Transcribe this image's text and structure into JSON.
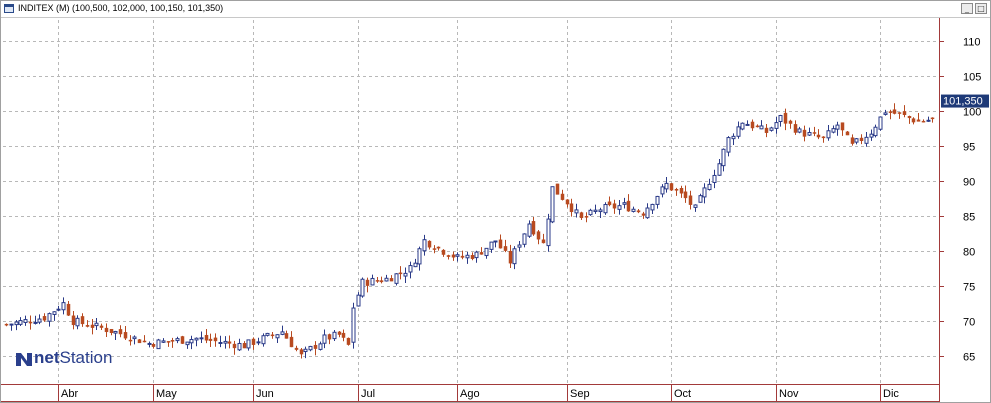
{
  "window": {
    "title": "INDITEX (M) (100,500, 102,000, 100,150, 101,350)",
    "minimize_glyph": "_",
    "maximize_glyph": "□"
  },
  "logo": {
    "net": "net",
    "station": "Station"
  },
  "colors": {
    "up": "#2a3a88",
    "down": "#b84a20",
    "grid": "#b8b8b8",
    "frame": "#a23a3a",
    "last_badge_bg": "#1e3a78",
    "last_badge_text": "#ffffff"
  },
  "chart_data": {
    "type": "candlestick",
    "title": "INDITEX (M) (100,500, 102,000, 100,150, 101,350)",
    "ohlc_last": {
      "open": "100,500",
      "high": "102,000",
      "low": "100,150",
      "close": "101,350"
    },
    "last_value_label": "101,350",
    "last_value": 101.35,
    "y_axis": {
      "ticks": [
        110,
        105,
        100,
        95,
        90,
        85,
        80,
        75,
        70,
        65
      ],
      "ylim": [
        60,
        111
      ],
      "side": "right"
    },
    "x_axis": {
      "months": [
        "Abr",
        "May",
        "Jun",
        "Jul",
        "Ago",
        "Sep",
        "Oct",
        "Nov",
        "Dic"
      ],
      "sessions_visible": 182
    },
    "grid": true,
    "close_path": [
      [
        0,
        69.5
      ],
      [
        8,
        70.5
      ],
      [
        12,
        72.5
      ],
      [
        14,
        70
      ],
      [
        20,
        69
      ],
      [
        25,
        68
      ],
      [
        30,
        66.8
      ],
      [
        40,
        67.5
      ],
      [
        50,
        66.5
      ],
      [
        58,
        68.5
      ],
      [
        62,
        65
      ],
      [
        64,
        66
      ],
      [
        67,
        67.5
      ],
      [
        70,
        68
      ],
      [
        72,
        66.5
      ],
      [
        73,
        72
      ],
      [
        75,
        75.5
      ],
      [
        80,
        76
      ],
      [
        85,
        77.5
      ],
      [
        88,
        81.5
      ],
      [
        92,
        80
      ],
      [
        95,
        79
      ],
      [
        99,
        79.5
      ],
      [
        103,
        81.5
      ],
      [
        106,
        78.5
      ],
      [
        110,
        84
      ],
      [
        113,
        81
      ],
      [
        115,
        89
      ],
      [
        118,
        87
      ],
      [
        121,
        84.5
      ],
      [
        125,
        86
      ],
      [
        130,
        86.5
      ],
      [
        134,
        85.5
      ],
      [
        137,
        88
      ],
      [
        139,
        89.5
      ],
      [
        143,
        87.5
      ],
      [
        145,
        86
      ],
      [
        148,
        90
      ],
      [
        150,
        92.5
      ],
      [
        152,
        96
      ],
      [
        155,
        98.5
      ],
      [
        160,
        97
      ],
      [
        163,
        99
      ],
      [
        167,
        97
      ],
      [
        172,
        96
      ],
      [
        175,
        98
      ],
      [
        178,
        95
      ],
      [
        182,
        97
      ],
      [
        185,
        100
      ],
      [
        188,
        99.5
      ],
      [
        192,
        98.5
      ],
      [
        197,
        99
      ],
      [
        200,
        101
      ],
      [
        205,
        103.5
      ],
      [
        208,
        106
      ],
      [
        211,
        104
      ],
      [
        212,
        100
      ],
      [
        214,
        99.5
      ],
      [
        217,
        101.35
      ]
    ]
  }
}
